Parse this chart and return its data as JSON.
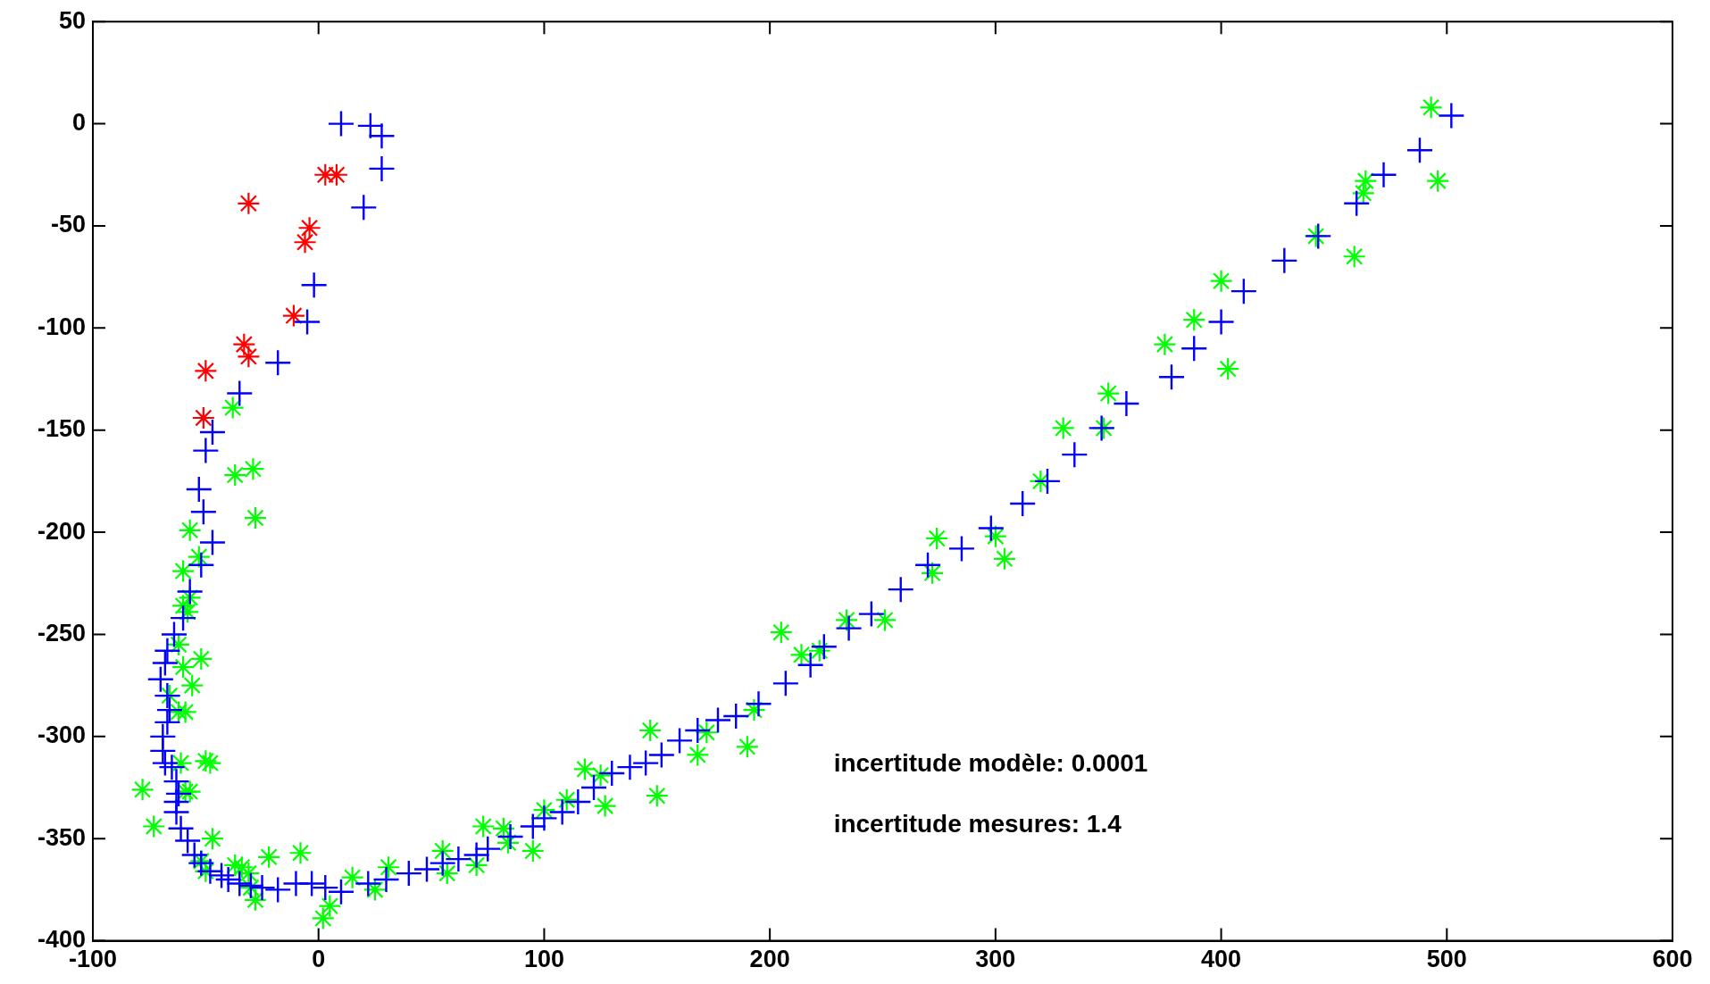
{
  "chart_data": {
    "type": "scatter",
    "xlim": [
      -100,
      600
    ],
    "ylim": [
      -400,
      50
    ],
    "xticks": [
      -100,
      0,
      100,
      200,
      300,
      400,
      500,
      600
    ],
    "yticks": [
      -400,
      -350,
      -300,
      -250,
      -200,
      -150,
      -100,
      -50,
      0,
      50
    ],
    "grid": false,
    "legend": false,
    "annotations": [
      "incertitude modèle: 0.0001",
      "incertitude mesures: 1.4"
    ],
    "series": [
      {
        "color": "#0000ff",
        "marker": "cross",
        "x": [
          10,
          23,
          28,
          28,
          20,
          -2,
          -5,
          -18,
          -35,
          -47,
          -50,
          -53,
          -51,
          -47,
          -52,
          -57,
          -60,
          -64,
          -67,
          -68,
          -70,
          -67,
          -66,
          -67,
          -69,
          -69,
          -68,
          -65,
          -63,
          -62,
          -63,
          -63,
          -61,
          -58,
          -55,
          -52,
          -48,
          -43,
          -40,
          -35,
          -30,
          -25,
          -18,
          -10,
          -3,
          3,
          10,
          22,
          30,
          40,
          48,
          55,
          62,
          70,
          75,
          85,
          95,
          100,
          108,
          115,
          122,
          130,
          138,
          145,
          152,
          160,
          168,
          177,
          185,
          195,
          207,
          218,
          224,
          235,
          245,
          258,
          270,
          285,
          298,
          312,
          323,
          335,
          347,
          358,
          378,
          388,
          400,
          410,
          428,
          443,
          460,
          472,
          488,
          502
        ],
        "values": [
          0,
          -1,
          -6,
          -22,
          -41,
          -79,
          -97,
          -117,
          -132,
          -151,
          -160,
          -179,
          -190,
          -205,
          -216,
          -229,
          -242,
          -250,
          -258,
          -264,
          -272,
          -280,
          -287,
          -293,
          -300,
          -307,
          -313,
          -315,
          -322,
          -328,
          -332,
          -337,
          -345,
          -351,
          -358,
          -362,
          -366,
          -368,
          -370,
          -372,
          -373,
          -374,
          -375,
          -372,
          -372,
          -374,
          -376,
          -372,
          -370,
          -367,
          -365,
          -362,
          -360,
          -358,
          -355,
          -349,
          -344,
          -340,
          -337,
          -332,
          -325,
          -318,
          -315,
          -313,
          -309,
          -302,
          -297,
          -292,
          -290,
          -284,
          -274,
          -265,
          -256,
          -247,
          -240,
          -228,
          -216,
          -208,
          -198,
          -186,
          -175,
          -162,
          -149,
          -137,
          -124,
          -110,
          -97,
          -82,
          -67,
          -55,
          -39,
          -25,
          -13,
          4
        ]
      },
      {
        "color": "#00ff00",
        "marker": "star",
        "x": [
          -38,
          -37,
          -29,
          -28,
          -57,
          -53,
          -60,
          -57,
          -60,
          -58,
          -62,
          -52,
          -60,
          -56,
          -66,
          -62,
          -59,
          -61,
          -50,
          -48,
          -59,
          -57,
          -78,
          -73,
          -47,
          -52,
          -50,
          -37,
          -34,
          -31,
          -30,
          -28,
          -22,
          -8,
          2,
          5,
          15,
          25,
          31,
          55,
          57,
          70,
          73,
          82,
          84,
          95,
          100,
          110,
          118,
          125,
          127,
          147,
          150,
          168,
          172,
          190,
          193,
          205,
          214,
          222,
          234,
          251,
          272,
          274,
          300,
          304,
          320,
          330,
          350,
          348,
          375,
          388,
          400,
          403,
          442,
          459,
          463,
          464,
          493,
          496
        ],
        "values": [
          -139,
          -172,
          -169,
          -193,
          -199,
          -212,
          -219,
          -232,
          -236,
          -239,
          -255,
          -262,
          -266,
          -275,
          -280,
          -288,
          -288,
          -313,
          -312,
          -313,
          -327,
          -327,
          -326,
          -344,
          -350,
          -361,
          -366,
          -363,
          -364,
          -367,
          -374,
          -380,
          -359,
          -357,
          -389,
          -383,
          -369,
          -375,
          -364,
          -356,
          -367,
          -363,
          -344,
          -345,
          -352,
          -356,
          -336,
          -331,
          -316,
          -319,
          -334,
          -297,
          -329,
          -309,
          -298,
          -305,
          -287,
          -249,
          -260,
          -258,
          -243,
          -243,
          -220,
          -203,
          -202,
          -213,
          -175,
          -149,
          -132,
          -149,
          -108,
          -96,
          -77,
          -120,
          -55,
          -65,
          -34,
          -28,
          8,
          -28
        ]
      },
      {
        "color": "#ff0000",
        "marker": "star",
        "x": [
          -31,
          3,
          8,
          -4,
          -6,
          -11,
          -33,
          -31,
          -50,
          -51
        ],
        "values": [
          -39,
          -25,
          -25,
          -51,
          -58,
          -94,
          -108,
          -114,
          -121,
          -144
        ]
      }
    ]
  }
}
